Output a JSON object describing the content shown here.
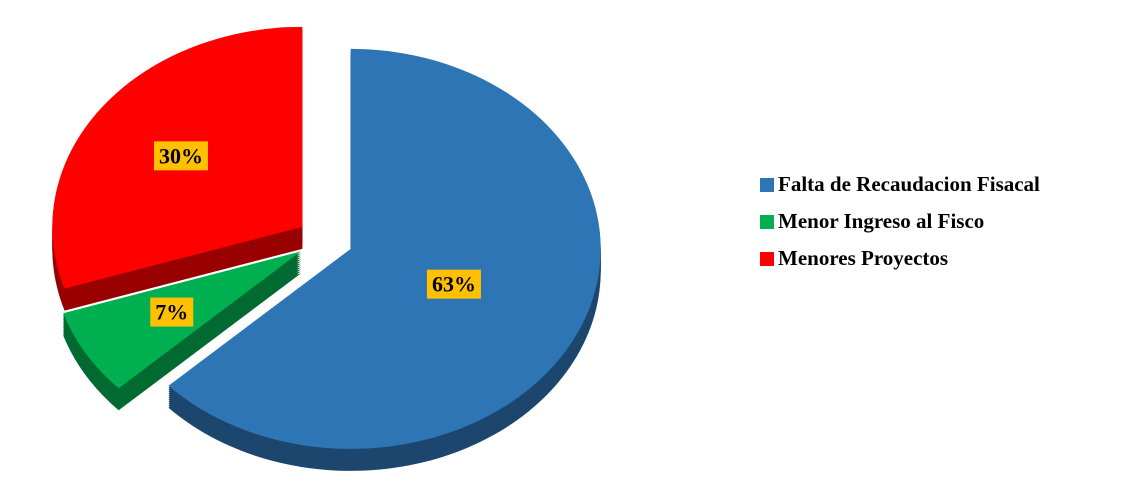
{
  "chart_data": {
    "type": "pie",
    "categories": [
      "Falta de Recaudacion Fisacal",
      "Menor Ingreso al Fisco",
      "Menores Proyectos"
    ],
    "values": [
      63,
      7,
      30
    ],
    "value_labels": [
      "63%",
      "7%",
      "30%"
    ],
    "colors": [
      "#2e75b6",
      "#00b050",
      "#ff0000"
    ],
    "legend": "right"
  }
}
